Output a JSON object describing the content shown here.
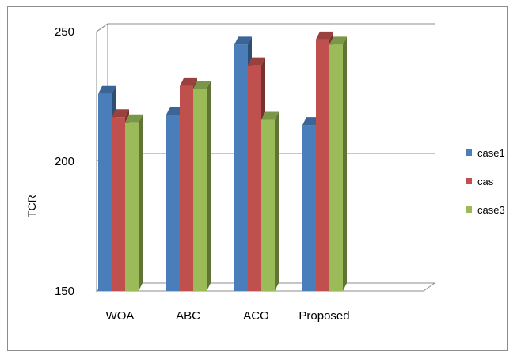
{
  "chart_data": {
    "type": "bar",
    "style": "3d-clustered-column",
    "categories": [
      "WOA",
      "ABC",
      "ACO",
      "Proposed"
    ],
    "series": [
      {
        "name": "case1",
        "color": "#4a7ebb",
        "values": [
          226,
          218,
          245,
          214
        ]
      },
      {
        "name": "cas",
        "color": "#c0504d",
        "values": [
          217,
          229,
          237,
          247
        ]
      },
      {
        "name": "case3",
        "color": "#9bbb59",
        "values": [
          215,
          228,
          216,
          245
        ]
      }
    ],
    "title": "",
    "xlabel": "",
    "ylabel": "TCR",
    "ylim": [
      150,
      250
    ],
    "yticks": [
      150,
      200,
      250
    ],
    "grid": true,
    "legend": "right"
  }
}
